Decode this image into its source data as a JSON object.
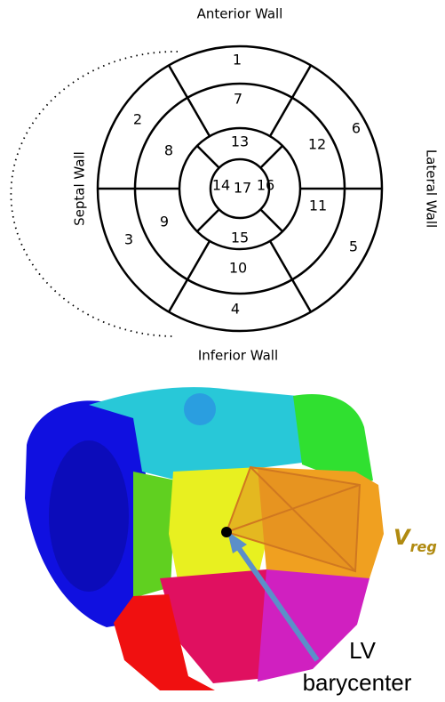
{
  "bullseye": {
    "walls": {
      "anterior": "Anterior Wall",
      "inferior": "Inferior Wall",
      "septal": "Septal Wall",
      "lateral": "Lateral Wall"
    },
    "segments": [
      "1",
      "2",
      "3",
      "4",
      "5",
      "6",
      "7",
      "8",
      "9",
      "10",
      "11",
      "12",
      "13",
      "14",
      "15",
      "16",
      "17"
    ]
  },
  "render": {
    "volume_label": {
      "main": "V",
      "sub": "reg"
    },
    "barycenter_label": [
      "LV",
      "barycenter"
    ]
  }
}
